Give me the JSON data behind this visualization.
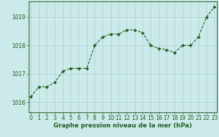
{
  "x": [
    0,
    1,
    2,
    3,
    4,
    5,
    6,
    7,
    8,
    9,
    10,
    11,
    12,
    13,
    14,
    15,
    16,
    17,
    18,
    19,
    20,
    21,
    22,
    23
  ],
  "y": [
    1016.2,
    1016.55,
    1016.55,
    1016.7,
    1017.1,
    1017.2,
    1017.2,
    1017.2,
    1018.0,
    1018.3,
    1018.4,
    1018.4,
    1018.55,
    1018.55,
    1018.45,
    1018.0,
    1017.9,
    1017.85,
    1017.75,
    1018.0,
    1018.0,
    1018.3,
    1019.0,
    1019.35
  ],
  "line_color": "#1e5c1e",
  "marker": "D",
  "marker_size": 2.2,
  "bg_color": "#cceaea",
  "grid_color": "#aacccc",
  "axis_color": "#1e5c1e",
  "xlabel": "Graphe pression niveau de la mer (hPa)",
  "xlabel_fontsize": 6.5,
  "ylabel_ticks": [
    1016,
    1017,
    1018,
    1019
  ],
  "xlim": [
    -0.3,
    23.3
  ],
  "ylim": [
    1015.65,
    1019.55
  ],
  "spine_color": "#336633",
  "tick_label_fontsize": 5.8,
  "linewidth": 0.8
}
